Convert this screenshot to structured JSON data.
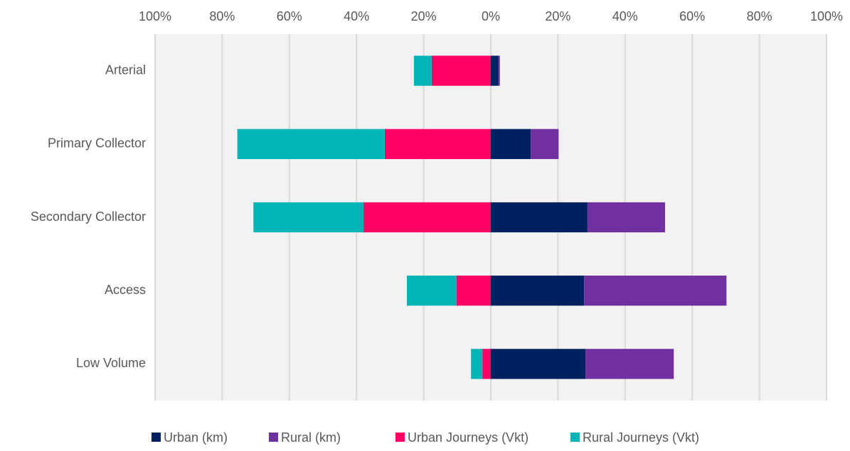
{
  "chart_data": {
    "type": "diverging_stacked_bar",
    "categories": [
      "Arterial",
      "Primary Collector",
      "Secondary Collector",
      "Access",
      "Low Volume"
    ],
    "series": [
      {
        "name": "Urban (km)",
        "color": "#002060",
        "values": [
          2.3,
          11.9,
          28.8,
          27.8,
          28.2
        ]
      },
      {
        "name": "Rural (km)",
        "color": "#7030a0",
        "values": [
          0.4,
          8.3,
          23.1,
          42.4,
          26.3
        ]
      },
      {
        "name": "Urban Journeys (Vkt)",
        "color": "#ff0066",
        "values": [
          -17.6,
          -31.6,
          -37.9,
          -10.2,
          -2.5
        ]
      },
      {
        "name": "Rural Journeys (Vkt)",
        "color": "#00b5b5",
        "values": [
          -5.3,
          -43.9,
          -32.8,
          -14.8,
          -3.4
        ]
      }
    ],
    "xlim": [
      -100,
      100
    ],
    "xticks": [
      {
        "value": -100,
        "label": "100%"
      },
      {
        "value": -80,
        "label": "80%"
      },
      {
        "value": -60,
        "label": "60%"
      },
      {
        "value": -40,
        "label": "40%"
      },
      {
        "value": -20,
        "label": "20%"
      },
      {
        "value": 0,
        "label": "0%"
      },
      {
        "value": 20,
        "label": "20%"
      },
      {
        "value": 40,
        "label": "40%"
      },
      {
        "value": 60,
        "label": "60%"
      },
      {
        "value": 80,
        "label": "80%"
      },
      {
        "value": 100,
        "label": "100%"
      }
    ],
    "grid": true,
    "legend": "bottom"
  }
}
